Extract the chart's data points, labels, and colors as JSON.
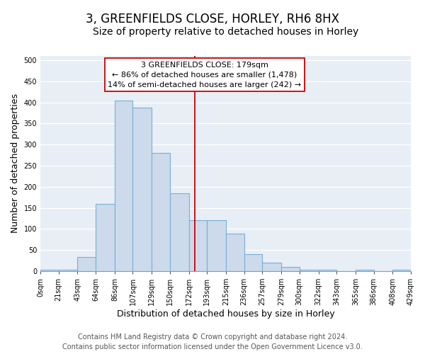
{
  "title": "3, GREENFIELDS CLOSE, HORLEY, RH6 8HX",
  "subtitle": "Size of property relative to detached houses in Horley",
  "xlabel": "Distribution of detached houses by size in Horley",
  "ylabel": "Number of detached properties",
  "bar_edges": [
    0,
    21,
    43,
    64,
    86,
    107,
    129,
    150,
    172,
    193,
    215,
    236,
    257,
    279,
    300,
    322,
    343,
    365,
    386,
    408,
    429
  ],
  "bar_heights": [
    3,
    3,
    33,
    160,
    405,
    388,
    280,
    185,
    120,
    120,
    88,
    40,
    20,
    10,
    3,
    3,
    0,
    3,
    0,
    3
  ],
  "bar_color": "#ccdaec",
  "bar_edge_color": "#7aafd4",
  "vline_x": 179,
  "vline_color": "#cc0000",
  "annotation_title": "3 GREENFIELDS CLOSE: 179sqm",
  "annotation_line1": "← 86% of detached houses are smaller (1,478)",
  "annotation_line2": "14% of semi-detached houses are larger (242) →",
  "annotation_box_color": "#ffffff",
  "annotation_box_edge_color": "#cc0000",
  "ylim": [
    0,
    510
  ],
  "yticks": [
    0,
    50,
    100,
    150,
    200,
    250,
    300,
    350,
    400,
    450,
    500
  ],
  "tick_labels": [
    "0sqm",
    "21sqm",
    "43sqm",
    "64sqm",
    "86sqm",
    "107sqm",
    "129sqm",
    "150sqm",
    "172sqm",
    "193sqm",
    "215sqm",
    "236sqm",
    "257sqm",
    "279sqm",
    "300sqm",
    "322sqm",
    "343sqm",
    "365sqm",
    "386sqm",
    "408sqm",
    "429sqm"
  ],
  "footer1": "Contains HM Land Registry data © Crown copyright and database right 2024.",
  "footer2": "Contains public sector information licensed under the Open Government Licence v3.0.",
  "background_color": "#ffffff",
  "plot_bg_color": "#e8eef5",
  "grid_color": "#ffffff",
  "title_fontsize": 12,
  "subtitle_fontsize": 10,
  "axis_label_fontsize": 9,
  "tick_fontsize": 7,
  "footer_fontsize": 7,
  "annotation_fontsize": 8
}
